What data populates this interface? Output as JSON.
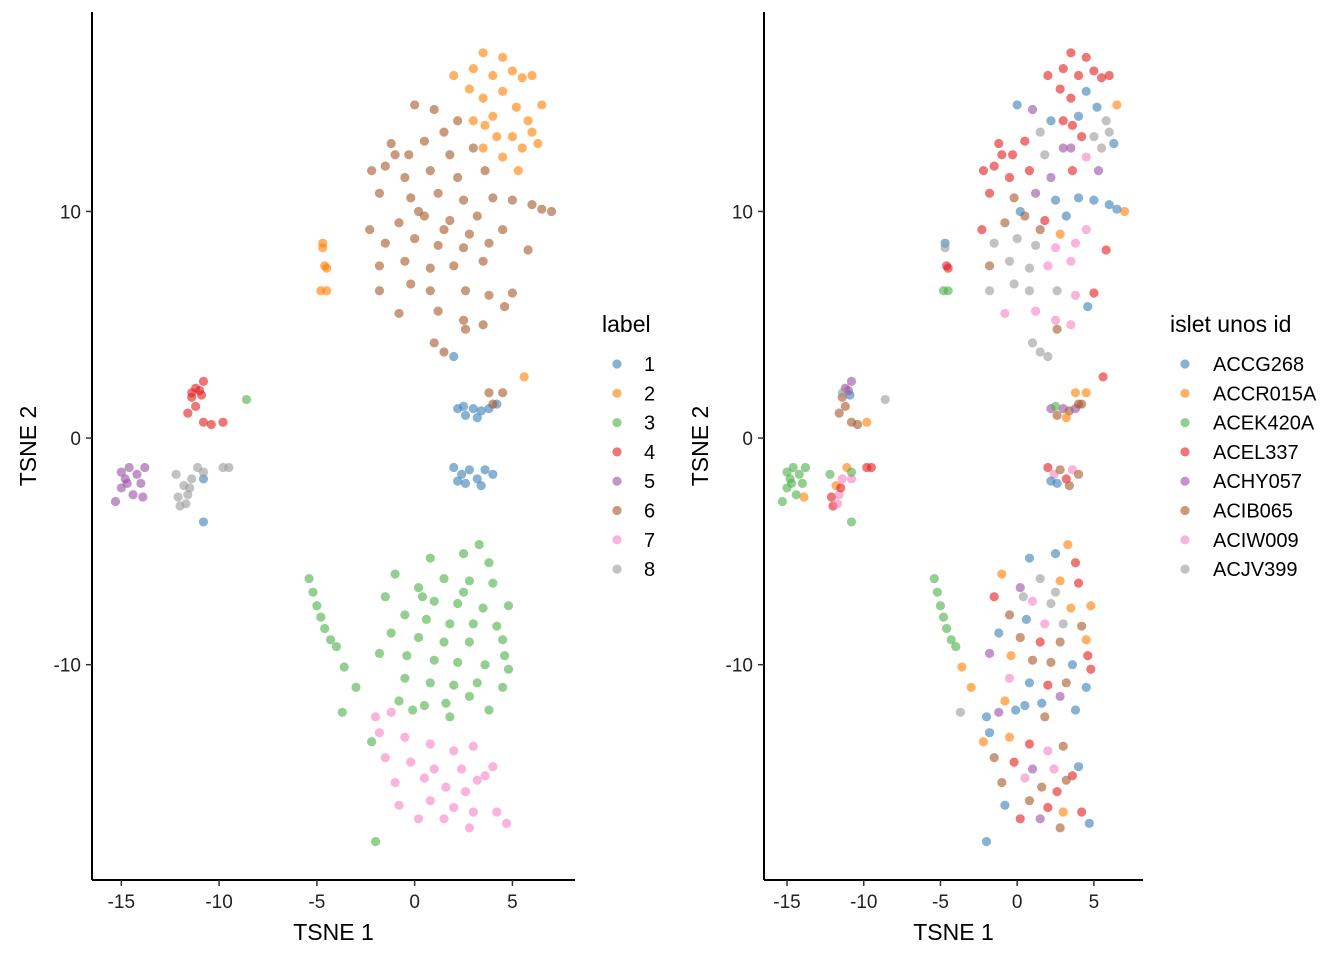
{
  "colors": {
    "1": "#377EB8",
    "2": "#FF7F00",
    "3": "#4DAF4A",
    "4": "#E41A1C",
    "5": "#984EA3",
    "6": "#A65628",
    "7": "#F781BF",
    "8": "#999999"
  },
  "chart_data": [
    {
      "type": "scatter",
      "panel": "left",
      "xlabel": "TSNE 1",
      "ylabel": "TSNE 2",
      "xlim": [
        -16.5,
        8.2
      ],
      "ylim": [
        -19.5,
        18.8
      ],
      "xticks": [
        "-15",
        "-10",
        "-5",
        "0",
        "5"
      ],
      "yticks": [
        "10",
        "0",
        "-10"
      ],
      "color_by": "label",
      "legend": {
        "title": "label",
        "position": "right",
        "entries": [
          "1",
          "2",
          "3",
          "4",
          "5",
          "6",
          "7",
          "8"
        ]
      },
      "grid": false
    },
    {
      "type": "scatter",
      "panel": "right",
      "xlabel": "TSNE 1",
      "ylabel": "TSNE 2",
      "xlim": [
        -16.5,
        8.2
      ],
      "ylim": [
        -19.5,
        18.8
      ],
      "xticks": [
        "-15",
        "-10",
        "-5",
        "0",
        "5"
      ],
      "yticks": [
        "10",
        "0",
        "-10"
      ],
      "color_by": "islet unos id",
      "legend": {
        "title": "islet unos id",
        "position": "right",
        "entries": [
          "ACCG268",
          "ACCR015A",
          "ACEK420A",
          "ACEL337",
          "ACHY057",
          "ACIB065",
          "ACIW009",
          "ACJV399"
        ]
      },
      "grid": false
    }
  ],
  "point_fields": [
    "tsne1",
    "tsne2",
    "label",
    "islet_index"
  ],
  "points": [
    [
      2.2,
      1.3,
      1,
      5
    ],
    [
      2.6,
      1.0,
      1,
      6
    ],
    [
      3.0,
      1.3,
      1,
      5
    ],
    [
      3.4,
      1.2,
      1,
      6
    ],
    [
      3.8,
      1.3,
      1,
      5
    ],
    [
      4.2,
      1.5,
      1,
      6
    ],
    [
      2.5,
      1.4,
      1,
      3
    ],
    [
      3.2,
      0.9,
      1,
      2
    ],
    [
      2.0,
      -1.3,
      1,
      4
    ],
    [
      2.4,
      -1.6,
      1,
      7
    ],
    [
      2.8,
      -1.4,
      1,
      6
    ],
    [
      3.2,
      -1.8,
      1,
      4
    ],
    [
      3.6,
      -1.4,
      1,
      7
    ],
    [
      4.0,
      -1.6,
      1,
      6
    ],
    [
      2.2,
      -1.9,
      1,
      1
    ],
    [
      3.4,
      -2.1,
      1,
      6
    ],
    [
      2.6,
      -2.0,
      1,
      1
    ],
    [
      -10.8,
      -1.8,
      1,
      7
    ],
    [
      -10.8,
      -3.7,
      1,
      3
    ],
    [
      2.0,
      3.6,
      1,
      8
    ],
    [
      3.5,
      17.0,
      2,
      4
    ],
    [
      4.5,
      16.8,
      2,
      4
    ],
    [
      5.0,
      16.2,
      2,
      4
    ],
    [
      3.0,
      16.3,
      2,
      4
    ],
    [
      4.0,
      16.0,
      2,
      4
    ],
    [
      2.8,
      15.4,
      2,
      4
    ],
    [
      5.5,
      15.9,
      2,
      4
    ],
    [
      6.0,
      16.0,
      2,
      4
    ],
    [
      2.0,
      16.0,
      2,
      4
    ],
    [
      3.5,
      15.0,
      2,
      4
    ],
    [
      4.5,
      15.3,
      2,
      1
    ],
    [
      5.2,
      14.6,
      2,
      1
    ],
    [
      6.5,
      14.7,
      2,
      2
    ],
    [
      5.8,
      14.0,
      2,
      8
    ],
    [
      4.0,
      14.2,
      2,
      1
    ],
    [
      3.0,
      14.0,
      2,
      4
    ],
    [
      5.0,
      13.3,
      2,
      8
    ],
    [
      6.0,
      13.5,
      2,
      8
    ],
    [
      5.5,
      12.8,
      2,
      8
    ],
    [
      4.5,
      12.4,
      2,
      7
    ],
    [
      3.5,
      12.8,
      2,
      5
    ],
    [
      6.3,
      13.0,
      2,
      1
    ],
    [
      5.3,
      11.8,
      2,
      5
    ],
    [
      4.2,
      13.3,
      2,
      4
    ],
    [
      3.6,
      13.8,
      2,
      4
    ],
    [
      -4.7,
      8.6,
      2,
      1
    ],
    [
      -4.7,
      8.4,
      2,
      8
    ],
    [
      -4.5,
      7.5,
      2,
      4
    ],
    [
      -4.6,
      7.6,
      2,
      4
    ],
    [
      -4.8,
      6.5,
      2,
      3
    ],
    [
      -4.5,
      6.5,
      2,
      3
    ],
    [
      5.6,
      2.7,
      2,
      4
    ],
    [
      0,
      14.7,
      6,
      1
    ],
    [
      -1.2,
      13.0,
      6,
      4
    ],
    [
      1.0,
      14.5,
      6,
      5
    ],
    [
      2.2,
      14.0,
      6,
      1
    ],
    [
      -1.5,
      12,
      6,
      4
    ],
    [
      0.5,
      13.1,
      6,
      4
    ],
    [
      1.8,
      12.5,
      6,
      8
    ],
    [
      3,
      12.8,
      6,
      5
    ],
    [
      -2.2,
      11.8,
      6,
      4
    ],
    [
      -0.5,
      11.5,
      6,
      4
    ],
    [
      0.8,
      11.8,
      6,
      4
    ],
    [
      2.2,
      11.5,
      6,
      5
    ],
    [
      3.6,
      11.8,
      6,
      4
    ],
    [
      -1.8,
      10.8,
      6,
      4
    ],
    [
      -0.2,
      10.6,
      6,
      6
    ],
    [
      1.2,
      10.8,
      6,
      5
    ],
    [
      2.5,
      10.5,
      6,
      1
    ],
    [
      4,
      10.6,
      6,
      1
    ],
    [
      5,
      10.5,
      6,
      1
    ],
    [
      6,
      10.3,
      6,
      1
    ],
    [
      7,
      10,
      6,
      2
    ],
    [
      -2.3,
      9.2,
      6,
      4
    ],
    [
      -0.8,
      9.5,
      6,
      6
    ],
    [
      0.5,
      9.8,
      6,
      6
    ],
    [
      1.8,
      9.6,
      6,
      4
    ],
    [
      3.2,
      9.8,
      6,
      1
    ],
    [
      4.5,
      9.2,
      6,
      7
    ],
    [
      -1.5,
      8.6,
      6,
      8
    ],
    [
      0,
      8.8,
      6,
      8
    ],
    [
      1.2,
      8.5,
      6,
      8
    ],
    [
      2.5,
      8.4,
      6,
      7
    ],
    [
      3.8,
      8.6,
      6,
      7
    ],
    [
      5.8,
      8.3,
      6,
      4
    ],
    [
      -1.8,
      7.6,
      6,
      6
    ],
    [
      -0.5,
      7.8,
      6,
      8
    ],
    [
      0.8,
      7.5,
      6,
      8
    ],
    [
      2,
      7.6,
      6,
      7
    ],
    [
      3.5,
      7.8,
      6,
      7
    ],
    [
      -1.8,
      6.5,
      6,
      8
    ],
    [
      -0.2,
      6.8,
      6,
      8
    ],
    [
      0.8,
      6.5,
      6,
      8
    ],
    [
      2.6,
      6.5,
      6,
      8
    ],
    [
      3.8,
      6.3,
      6,
      7
    ],
    [
      5,
      6.4,
      6,
      4
    ],
    [
      -0.8,
      5.5,
      6,
      7
    ],
    [
      1.2,
      5.6,
      6,
      7
    ],
    [
      2.5,
      5.2,
      6,
      7
    ],
    [
      4.6,
      5.8,
      6,
      1
    ],
    [
      1,
      4.2,
      6,
      8
    ],
    [
      2.6,
      4.8,
      6,
      6
    ],
    [
      3.5,
      5.0,
      6,
      7
    ],
    [
      1.5,
      3.8,
      6,
      8
    ],
    [
      4,
      1.5,
      6,
      6
    ],
    [
      4.5,
      2,
      6,
      2
    ],
    [
      3.8,
      2.0,
      6,
      2
    ],
    [
      -1,
      12.5,
      6,
      4
    ],
    [
      1.5,
      13.5,
      6,
      8
    ],
    [
      0.2,
      10,
      6,
      1
    ],
    [
      2.8,
      9,
      6,
      2
    ],
    [
      1.5,
      9.2,
      6,
      6
    ],
    [
      6.5,
      10.1,
      6,
      1
    ],
    [
      -0.3,
      12.5,
      6,
      4
    ],
    [
      -11.2,
      2.2,
      4,
      5
    ],
    [
      -10.8,
      2.5,
      4,
      5
    ],
    [
      -11.4,
      1.8,
      4,
      6
    ],
    [
      -10.9,
      1.9,
      4,
      1
    ],
    [
      -11.2,
      1.4,
      4,
      6
    ],
    [
      -11.6,
      1.1,
      4,
      6
    ],
    [
      -10.8,
      0.7,
      4,
      6
    ],
    [
      -10.4,
      0.6,
      4,
      6
    ],
    [
      -9.8,
      0.7,
      4,
      2
    ],
    [
      -11,
      2.1,
      4,
      5
    ],
    [
      -11.4,
      2.0,
      4,
      8
    ],
    [
      -15.3,
      -2.8,
      5,
      3
    ],
    [
      -15,
      -2.2,
      5,
      3
    ],
    [
      -14.8,
      -1.8,
      5,
      3
    ],
    [
      -14.6,
      -1.3,
      5,
      3
    ],
    [
      -14.4,
      -2.5,
      5,
      3
    ],
    [
      -14.2,
      -1.6,
      5,
      3
    ],
    [
      -14,
      -2.0,
      5,
      3
    ],
    [
      -13.8,
      -1.3,
      5,
      3
    ],
    [
      -15,
      -1.5,
      5,
      3
    ],
    [
      -14.7,
      -2.0,
      5,
      3
    ],
    [
      -13.9,
      -2.6,
      5,
      2
    ],
    [
      -12.2,
      -1.6,
      8,
      3
    ],
    [
      -11.8,
      -2.1,
      8,
      2
    ],
    [
      -12.1,
      -2.6,
      8,
      4
    ],
    [
      -11.6,
      -2.5,
      8,
      7
    ],
    [
      -11.4,
      -1.8,
      8,
      7
    ],
    [
      -11.1,
      -1.3,
      8,
      2
    ],
    [
      -10.8,
      -1.5,
      8,
      3
    ],
    [
      -9.8,
      -1.3,
      8,
      4
    ],
    [
      -9.5,
      -1.3,
      8,
      4
    ],
    [
      -12,
      -3,
      8,
      4
    ],
    [
      -11.7,
      -2.9,
      8,
      7
    ],
    [
      -11.5,
      -2.2,
      8,
      4
    ],
    [
      -5.4,
      -6.2,
      3,
      3
    ],
    [
      -5.2,
      -6.8,
      3,
      3
    ],
    [
      -5.0,
      -7.4,
      3,
      3
    ],
    [
      -4.8,
      -7.9,
      3,
      3
    ],
    [
      -4.6,
      -8.4,
      3,
      3
    ],
    [
      -4.3,
      -8.9,
      3,
      3
    ],
    [
      -4.0,
      -9.2,
      3,
      3
    ],
    [
      -3.6,
      -10.1,
      3,
      2
    ],
    [
      -3.0,
      -11.0,
      3,
      2
    ],
    [
      -3.7,
      -12.1,
      3,
      8
    ],
    [
      -2.2,
      -13.4,
      3,
      2
    ],
    [
      -2,
      -17.8,
      3,
      1
    ],
    [
      -8.6,
      1.7,
      3,
      8
    ],
    [
      3.3,
      -4.7,
      3,
      2
    ],
    [
      2.5,
      -5.1,
      3,
      1
    ],
    [
      0.8,
      -5.3,
      3,
      1
    ],
    [
      3.8,
      -5.5,
      3,
      4
    ],
    [
      -1,
      -6,
      3,
      2
    ],
    [
      1.5,
      -6.2,
      3,
      8
    ],
    [
      2.8,
      -6.3,
      3,
      2
    ],
    [
      4,
      -6.4,
      3,
      4
    ],
    [
      0.2,
      -6.6,
      3,
      5
    ],
    [
      -1.5,
      -7.0,
      3,
      4
    ],
    [
      1,
      -7.2,
      3,
      7
    ],
    [
      2.2,
      -7.3,
      3,
      8
    ],
    [
      3.5,
      -7.5,
      3,
      2
    ],
    [
      4.8,
      -7.4,
      3,
      2
    ],
    [
      -0.5,
      -7.8,
      3,
      6
    ],
    [
      0.6,
      -8.0,
      3,
      1
    ],
    [
      1.8,
      -8.2,
      3,
      7
    ],
    [
      3.0,
      -8.2,
      3,
      8
    ],
    [
      4.2,
      -8.3,
      3,
      6
    ],
    [
      -1.2,
      -8.6,
      3,
      1
    ],
    [
      0.2,
      -8.8,
      3,
      6
    ],
    [
      1.5,
      -9.0,
      3,
      4
    ],
    [
      2.8,
      -9.0,
      3,
      6
    ],
    [
      4.5,
      -8.9,
      3,
      2
    ],
    [
      -1.8,
      -9.5,
      3,
      5
    ],
    [
      -0.4,
      -9.6,
      3,
      2
    ],
    [
      1,
      -9.8,
      3,
      6
    ],
    [
      2.2,
      -9.9,
      3,
      6
    ],
    [
      3.6,
      -10,
      3,
      1
    ],
    [
      4.8,
      -10.2,
      3,
      4
    ],
    [
      -0.5,
      -10.6,
      3,
      7
    ],
    [
      0.8,
      -10.8,
      3,
      1
    ],
    [
      2,
      -10.9,
      3,
      4
    ],
    [
      3.2,
      -10.8,
      3,
      6
    ],
    [
      4.5,
      -11,
      3,
      1
    ],
    [
      -0.8,
      -11.6,
      3,
      2
    ],
    [
      0.5,
      -11.8,
      3,
      1
    ],
    [
      1.6,
      -11.7,
      3,
      1
    ],
    [
      2.8,
      -11.4,
      3,
      5
    ],
    [
      3.8,
      -12.0,
      3,
      1
    ],
    [
      1.8,
      -12.3,
      3,
      6
    ],
    [
      -0.1,
      -12.0,
      3,
      1
    ],
    [
      2.5,
      -6.8,
      3,
      8
    ],
    [
      0.4,
      -7.0,
      3,
      8
    ],
    [
      4.6,
      -9.6,
      3,
      4
    ],
    [
      -1.2,
      -12.1,
      7,
      5
    ],
    [
      -2,
      -12.3,
      7,
      1
    ],
    [
      -1.8,
      -13.0,
      7,
      1
    ],
    [
      -0.5,
      -13.2,
      7,
      2
    ],
    [
      0.8,
      -13.5,
      7,
      4
    ],
    [
      2,
      -13.8,
      7,
      7
    ],
    [
      3,
      -13.6,
      7,
      6
    ],
    [
      -1.5,
      -14.1,
      7,
      6
    ],
    [
      -0.2,
      -14.3,
      7,
      4
    ],
    [
      1,
      -14.6,
      7,
      5
    ],
    [
      2.4,
      -14.6,
      7,
      7
    ],
    [
      3.6,
      -14.9,
      7,
      4
    ],
    [
      4,
      -14.5,
      7,
      1
    ],
    [
      -1,
      -15.2,
      7,
      6
    ],
    [
      0.5,
      -15.0,
      7,
      7
    ],
    [
      1.6,
      -15.4,
      7,
      6
    ],
    [
      2.6,
      -15.6,
      7,
      4
    ],
    [
      3.2,
      -15.1,
      7,
      6
    ],
    [
      -0.8,
      -16.2,
      7,
      1
    ],
    [
      0.8,
      -16.0,
      7,
      6
    ],
    [
      2,
      -16.3,
      7,
      4
    ],
    [
      3,
      -16.5,
      7,
      2
    ],
    [
      4.2,
      -16.5,
      7,
      4
    ],
    [
      0.2,
      -16.8,
      7,
      4
    ],
    [
      1.5,
      -16.8,
      7,
      5
    ],
    [
      2.8,
      -17.2,
      7,
      6
    ],
    [
      4.7,
      -17.0,
      7,
      1
    ]
  ]
}
